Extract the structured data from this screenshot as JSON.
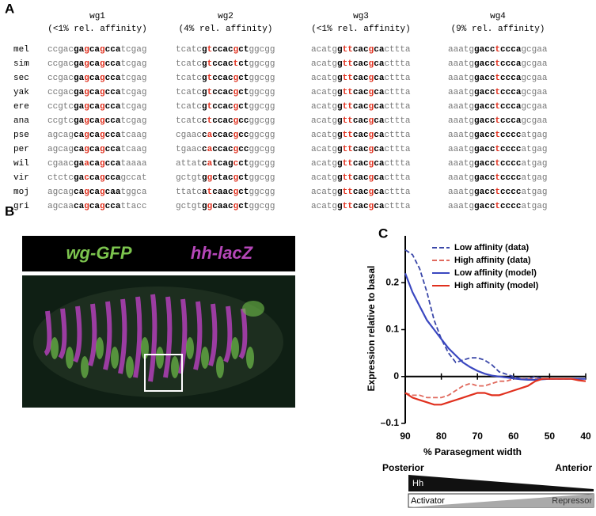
{
  "panel_a": {
    "label": "A",
    "species": [
      "mel",
      "sim",
      "sec",
      "yak",
      "ere",
      "ana",
      "pse",
      "per",
      "wil",
      "vir",
      "moj",
      "gri"
    ],
    "groups": [
      {
        "name": "wg1",
        "affinity": "(<1% rel. affinity)",
        "sequences": [
          {
            "left": "ccgac",
            "core": [
              "ga",
              "g",
              "ca",
              "g",
              "cca"
            ],
            "right": "tcgag"
          },
          {
            "left": "ccgac",
            "core": [
              "ga",
              "g",
              "ca",
              "g",
              "cca"
            ],
            "right": "tcgag"
          },
          {
            "left": "ccgac",
            "core": [
              "ga",
              "g",
              "ca",
              "g",
              "cca"
            ],
            "right": "tcgag"
          },
          {
            "left": "ccgac",
            "core": [
              "ga",
              "g",
              "ca",
              "g",
              "cca"
            ],
            "right": "tcgag"
          },
          {
            "left": "ccgtc",
            "core": [
              "ga",
              "g",
              "ca",
              "g",
              "cca"
            ],
            "right": "tcgag"
          },
          {
            "left": "ccgtc",
            "core": [
              "ga",
              "g",
              "ca",
              "g",
              "cca"
            ],
            "right": "tcgag"
          },
          {
            "left": "agcag",
            "core": [
              "ca",
              "g",
              "ca",
              "g",
              "cca"
            ],
            "right": "tcaag"
          },
          {
            "left": "agcag",
            "core": [
              "ca",
              "g",
              "ca",
              "g",
              "cca"
            ],
            "right": "tcaag"
          },
          {
            "left": "cgaac",
            "core": [
              "ga",
              "a",
              "ca",
              "g",
              "cca"
            ],
            "right": "taaaa"
          },
          {
            "left": "ctctc",
            "core": [
              "ga",
              "c",
              "ca",
              "g",
              "cca"
            ],
            "right": "gccat"
          },
          {
            "left": "agcag",
            "core": [
              "ca",
              "g",
              "ca",
              "g",
              "caa"
            ],
            "right": "tggca"
          },
          {
            "left": "agcaa",
            "core": [
              "ca",
              "g",
              "ca",
              "g",
              "cca"
            ],
            "right": "ttacc"
          }
        ]
      },
      {
        "name": "wg2",
        "affinity": "(4% rel. affinity)",
        "sequences": [
          {
            "left": "tcatc",
            "core": [
              "g",
              "t",
              "ccac",
              "g",
              "ct"
            ],
            "right": "ggcgg"
          },
          {
            "left": "tcatc",
            "core": [
              "g",
              "t",
              "ccac",
              "t",
              "ct"
            ],
            "right": "ggcgg"
          },
          {
            "left": "tcatc",
            "core": [
              "g",
              "t",
              "ccac",
              "g",
              "ct"
            ],
            "right": "ggcgg"
          },
          {
            "left": "tcatc",
            "core": [
              "g",
              "t",
              "ccac",
              "g",
              "ct"
            ],
            "right": "ggcgg"
          },
          {
            "left": "tcatc",
            "core": [
              "g",
              "t",
              "ccac",
              "g",
              "ct"
            ],
            "right": "ggcgg"
          },
          {
            "left": "tcatc",
            "core": [
              "c",
              "t",
              "ccac",
              "g",
              "cc"
            ],
            "right": "ggcgg"
          },
          {
            "left": "cgaac",
            "core": [
              "c",
              "a",
              "ccac",
              "g",
              "cc"
            ],
            "right": "ggcgg"
          },
          {
            "left": "tgaac",
            "core": [
              "c",
              "a",
              "ccac",
              "g",
              "cc"
            ],
            "right": "ggcgg"
          },
          {
            "left": "attat",
            "core": [
              "c",
              "a",
              "tcag",
              "c",
              "ct"
            ],
            "right": "ggcgg"
          },
          {
            "left": "gctgt",
            "core": [
              "g",
              "g",
              "ctac",
              "g",
              "ct"
            ],
            "right": "ggcgg"
          },
          {
            "left": "ttatc",
            "core": [
              "a",
              "t",
              "caac",
              "g",
              "ct"
            ],
            "right": "ggcgg"
          },
          {
            "left": "gctgt",
            "core": [
              "g",
              "g",
              "caac",
              "g",
              "ct"
            ],
            "right": "ggcgg"
          }
        ]
      },
      {
        "name": "wg3",
        "affinity": "(<1% rel. affinity)",
        "sequences": [
          {
            "left": "acatg",
            "core": [
              "g",
              "tt",
              "cac",
              "g",
              "ca"
            ],
            "right": "cttta"
          },
          {
            "left": "acatg",
            "core": [
              "g",
              "tt",
              "cac",
              "g",
              "ca"
            ],
            "right": "cttta"
          },
          {
            "left": "acatg",
            "core": [
              "g",
              "tt",
              "cac",
              "g",
              "ca"
            ],
            "right": "cttta"
          },
          {
            "left": "acatg",
            "core": [
              "g",
              "tt",
              "cac",
              "g",
              "ca"
            ],
            "right": "cttta"
          },
          {
            "left": "acatg",
            "core": [
              "g",
              "tt",
              "cac",
              "g",
              "ca"
            ],
            "right": "cttta"
          },
          {
            "left": "acatg",
            "core": [
              "g",
              "tt",
              "cac",
              "g",
              "ca"
            ],
            "right": "cttta"
          },
          {
            "left": "acatg",
            "core": [
              "g",
              "tt",
              "cac",
              "g",
              "ca"
            ],
            "right": "cttta"
          },
          {
            "left": "acatg",
            "core": [
              "g",
              "tt",
              "cac",
              "g",
              "ca"
            ],
            "right": "cttta"
          },
          {
            "left": "acatg",
            "core": [
              "g",
              "tt",
              "cac",
              "g",
              "ca"
            ],
            "right": "cttta"
          },
          {
            "left": "acatg",
            "core": [
              "g",
              "tt",
              "cac",
              "g",
              "ca"
            ],
            "right": "cttta"
          },
          {
            "left": "acatg",
            "core": [
              "g",
              "tt",
              "cac",
              "g",
              "ca"
            ],
            "right": "cttta"
          },
          {
            "left": "acatg",
            "core": [
              "g",
              "tt",
              "cac",
              "g",
              "ca"
            ],
            "right": "cttta"
          }
        ]
      },
      {
        "name": "wg4",
        "affinity": "(9% rel. affinity)",
        "sequences": [
          {
            "left": "aaatg",
            "core": [
              "gacc",
              "t",
              "ccca"
            ],
            "right": "gcgaa"
          },
          {
            "left": "aaatg",
            "core": [
              "gacc",
              "t",
              "ccca"
            ],
            "right": "gcgaa"
          },
          {
            "left": "aaatg",
            "core": [
              "gacc",
              "t",
              "ccca"
            ],
            "right": "gcgaa"
          },
          {
            "left": "aaatg",
            "core": [
              "gacc",
              "t",
              "ccca"
            ],
            "right": "gcgaa"
          },
          {
            "left": "aaatg",
            "core": [
              "gacc",
              "t",
              "ccca"
            ],
            "right": "gcgaa"
          },
          {
            "left": "aaatg",
            "core": [
              "gacc",
              "t",
              "ccca"
            ],
            "right": "gcgaa"
          },
          {
            "left": "aaatg",
            "core": [
              "gacc",
              "t",
              "cccc"
            ],
            "right": "atgag"
          },
          {
            "left": "aaatg",
            "core": [
              "gacc",
              "t",
              "cccc"
            ],
            "right": "atgag"
          },
          {
            "left": "aaatg",
            "core": [
              "gacc",
              "t",
              "cccc"
            ],
            "right": "atgag"
          },
          {
            "left": "aaatg",
            "core": [
              "gacc",
              "t",
              "cccc"
            ],
            "right": "atgag"
          },
          {
            "left": "aaatg",
            "core": [
              "gacc",
              "t",
              "cccc"
            ],
            "right": "atgag"
          },
          {
            "left": "aaatg",
            "core": [
              "gacc",
              "t",
              "cccc"
            ],
            "right": "atgag"
          }
        ]
      }
    ]
  },
  "panel_b": {
    "label": "B",
    "green_label": "wg-GFP",
    "magenta_label": "hh-lacZ"
  },
  "chart_data": {
    "type": "line",
    "panel_label": "C",
    "x_label": "% Parasegment width",
    "y_label": "Expression relative to basal",
    "x": [
      90,
      88,
      86,
      84,
      82,
      80,
      78,
      76,
      74,
      72,
      70,
      68,
      66,
      64,
      62,
      60,
      58,
      56,
      54,
      52,
      50,
      48,
      46,
      44,
      42,
      40
    ],
    "xlim": [
      90,
      40
    ],
    "xticks": [
      90,
      80,
      70,
      60,
      50,
      40
    ],
    "ylim": [
      -0.1,
      0.3
    ],
    "yticks": [
      {
        "value": -0.1,
        "label": "–0.1"
      },
      0,
      0.1,
      0.2
    ],
    "legend": "upper right",
    "series": [
      {
        "name": "Low affinity (data)",
        "color": "#3a47a8",
        "dashed": true,
        "values": [
          0.27,
          0.26,
          0.23,
          0.18,
          0.12,
          0.08,
          0.05,
          0.03,
          0.035,
          0.04,
          0.04,
          0.035,
          0.025,
          0.01,
          0.005,
          0,
          -0.005,
          -0.005,
          0,
          -0.005,
          -0.005,
          -0.005,
          -0.005,
          -0.005,
          -0.005,
          -0.005
        ]
      },
      {
        "name": "High affinity (data)",
        "color": "#e06a5e",
        "dashed": true,
        "values": [
          -0.035,
          -0.04,
          -0.04,
          -0.045,
          -0.045,
          -0.045,
          -0.04,
          -0.03,
          -0.02,
          -0.015,
          -0.02,
          -0.02,
          -0.015,
          -0.01,
          -0.01,
          -0.005,
          -0.005,
          -0.005,
          -0.005,
          -0.005,
          -0.005,
          -0.005,
          -0.005,
          -0.005,
          -0.005,
          -0.005
        ]
      },
      {
        "name": "Low affinity (model)",
        "color": "#3a47c0",
        "dashed": false,
        "values": [
          0.22,
          0.18,
          0.15,
          0.12,
          0.1,
          0.08,
          0.06,
          0.045,
          0.03,
          0.02,
          0.012,
          0.006,
          0.002,
          0,
          -0.002,
          -0.004,
          -0.006,
          -0.007,
          -0.007,
          -0.006,
          -0.005,
          -0.005,
          -0.005,
          -0.005,
          -0.005,
          -0.005
        ]
      },
      {
        "name": "High affinity (model)",
        "color": "#e0301e",
        "dashed": false,
        "values": [
          -0.035,
          -0.045,
          -0.05,
          -0.055,
          -0.06,
          -0.06,
          -0.055,
          -0.05,
          -0.045,
          -0.04,
          -0.035,
          -0.035,
          -0.04,
          -0.04,
          -0.035,
          -0.03,
          -0.025,
          -0.02,
          -0.01,
          -0.005,
          -0.005,
          -0.005,
          -0.005,
          -0.005,
          -0.008,
          -0.01
        ]
      }
    ]
  },
  "gradient": {
    "posterior": "Posterior",
    "anterior": "Anterior",
    "hh": "Hh",
    "activator": "Activator",
    "repressor": "Repressor"
  }
}
